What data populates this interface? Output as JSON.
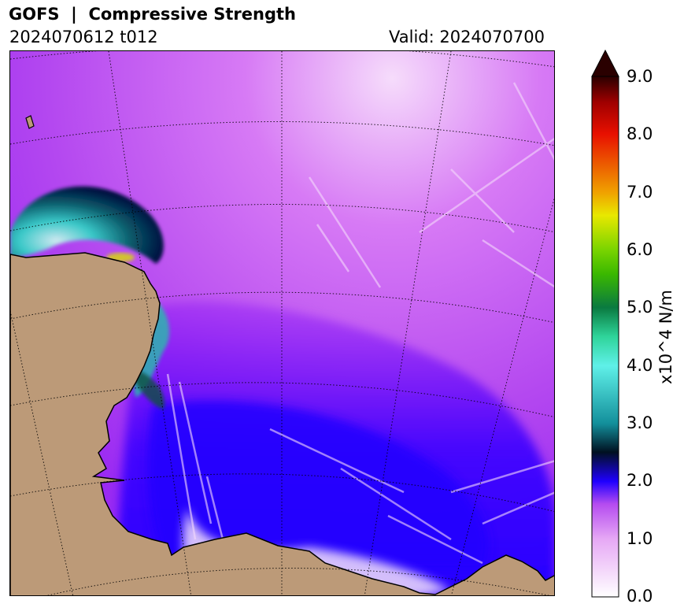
{
  "header": {
    "title": "GOFS  |  Compressive Strength",
    "run": "2024070612 t012",
    "valid": "Valid: 2024070700"
  },
  "colorbar": {
    "label": "x10^4 N/m",
    "min": 0.0,
    "max": 9.0,
    "extend": "max",
    "ticks": [
      "0.0",
      "1.0",
      "2.0",
      "3.0",
      "4.0",
      "5.0",
      "6.0",
      "7.0",
      "8.0",
      "9.0"
    ],
    "colors": {
      "0": "#ffffff",
      "1": "#e6a8f5",
      "1.6": "#b54cf0",
      "2": "#1f00ff",
      "2.5": "#001020",
      "3": "#138f9b",
      "4": "#5ff0e8",
      "5": "#0a7a40",
      "6": "#7ad400",
      "6.6": "#e8e800",
      "7": "#f0a000",
      "8": "#e81000",
      "8.6": "#a00000",
      "9": "#2a0000"
    }
  },
  "map": {
    "land_color": "#bc9a78",
    "ice_base_color": "#c056f2",
    "coastline_color": "#000000"
  }
}
